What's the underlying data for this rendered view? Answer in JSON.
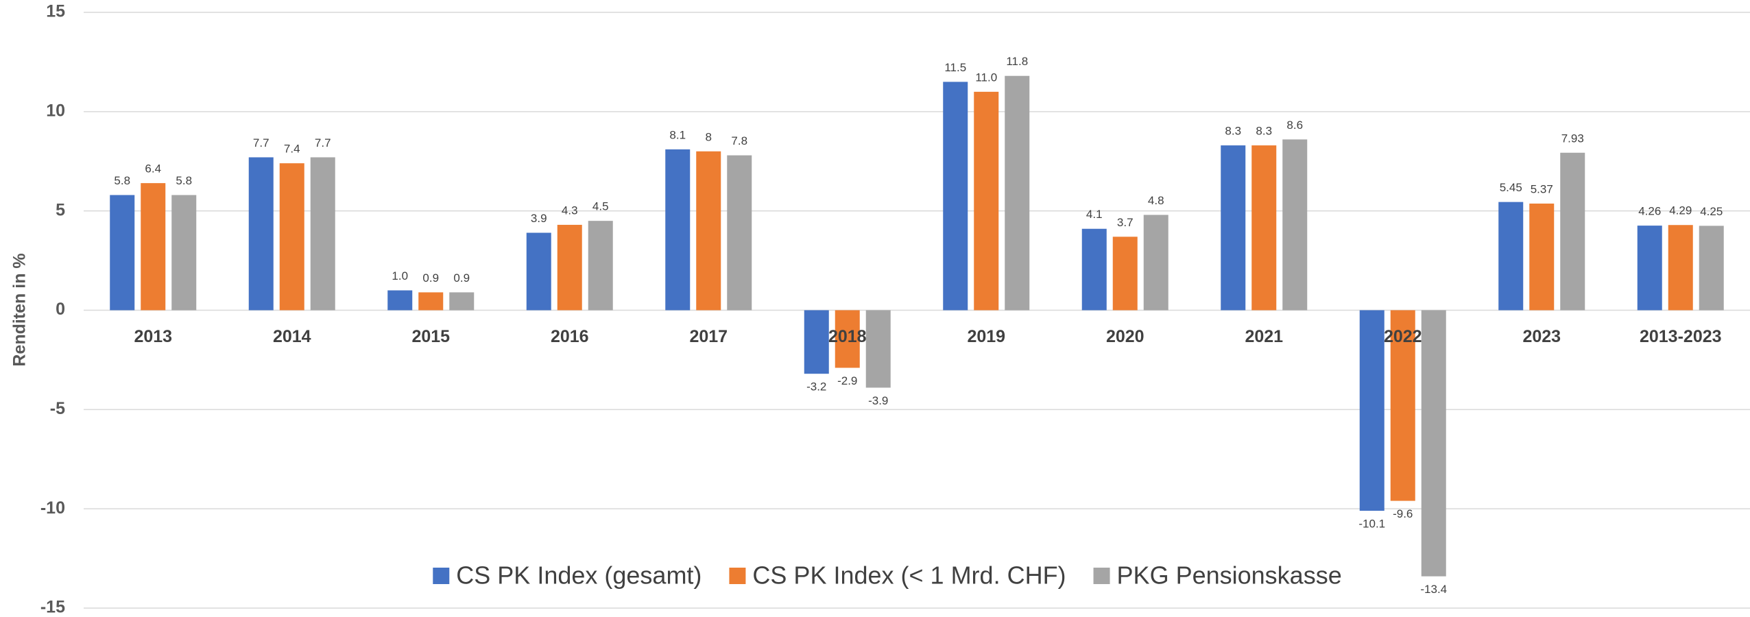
{
  "chart_data": {
    "type": "bar",
    "y_label": "Renditen in %",
    "categories": [
      "2013",
      "2014",
      "2015",
      "2016",
      "2017",
      "2018",
      "2019",
      "2020",
      "2021",
      "2022",
      "2023",
      "2013-2023"
    ],
    "series": [
      {
        "name": "CS PK Index (gesamt)",
        "color": "#4472c4",
        "values": [
          5.8,
          7.7,
          1.0,
          3.9,
          8.1,
          -3.2,
          11.5,
          4.1,
          8.3,
          -10.1,
          5.45,
          4.26
        ],
        "value_labels": [
          "5.8",
          "7.7",
          "1.0",
          "3.9",
          "8.1",
          "-3.2",
          "11.5",
          "4.1",
          "8.3",
          "-10.1",
          "5.45",
          "4.26"
        ]
      },
      {
        "name": "CS PK Index (< 1 Mrd. CHF)",
        "color": "#ed7d31",
        "values": [
          6.4,
          7.4,
          0.9,
          4.3,
          8,
          -2.9,
          11.0,
          3.7,
          8.3,
          -9.6,
          5.37,
          4.29
        ],
        "value_labels": [
          "6.4",
          "7.4",
          "0.9",
          "4.3",
          "8",
          "-2.9",
          "11.0",
          "3.7",
          "8.3",
          "-9.6",
          "5.37",
          "4.29"
        ]
      },
      {
        "name": "PKG Pensionskasse",
        "color": "#a5a5a5",
        "values": [
          5.8,
          7.7,
          0.9,
          4.5,
          7.8,
          -3.9,
          11.8,
          4.8,
          8.6,
          -13.4,
          7.93,
          4.25
        ],
        "value_labels": [
          "5.8",
          "7.7",
          "0.9",
          "4.5",
          "7.8",
          "-3.9",
          "11.8",
          "4.8",
          "8.6",
          "-13.4",
          "7.93",
          "4.25"
        ]
      }
    ],
    "ylim": [
      -15,
      15
    ],
    "yticks": [
      -15,
      -10,
      -5,
      0,
      5,
      10,
      15
    ],
    "grid": true,
    "legend": "bottom"
  }
}
